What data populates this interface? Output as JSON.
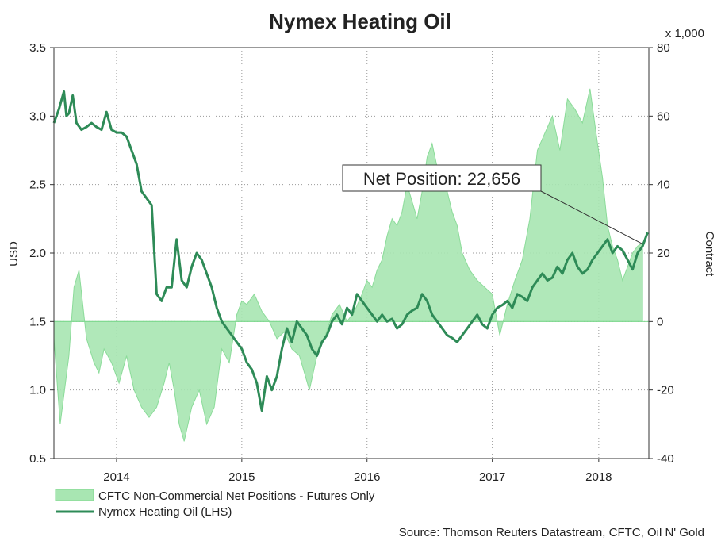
{
  "chart_data": {
    "type": "line",
    "title": "Nymex Heating Oil",
    "left_axis": {
      "label": "USD",
      "min": 0.5,
      "max": 3.5,
      "ticks": [
        "0.5",
        "1.0",
        "1.5",
        "2.0",
        "2.5",
        "3.0",
        "3.5"
      ],
      "tick_values": [
        0.5,
        1.0,
        1.5,
        2.0,
        2.5,
        3.0,
        3.5
      ]
    },
    "right_axis": {
      "label": "Contract",
      "multiplier": "x 1,000",
      "min": -40,
      "max": 80,
      "ticks": [
        "-40",
        "-20",
        "0",
        "20",
        "40",
        "60",
        "80"
      ],
      "tick_values": [
        -40,
        -20,
        0,
        20,
        40,
        60,
        80
      ]
    },
    "x_axis": {
      "min": 2013.6,
      "max": 2018.35,
      "ticks": [
        "2014",
        "2015",
        "2016",
        "2017",
        "2018"
      ],
      "tick_values": [
        2014.1,
        2015.1,
        2016.1,
        2017.1,
        2017.95
      ],
      "gridlines": [
        2014.1,
        2015.1,
        2016.1,
        2017.1,
        2017.95
      ]
    },
    "grid": true,
    "legend_position": "bottom-left",
    "series": [
      {
        "name": "CFTC Non-Commercial Net Positions - Futures Only",
        "type": "area",
        "axis": "right",
        "color": "#7fd88f",
        "x": [
          2013.6,
          2013.65,
          2013.72,
          2013.76,
          2013.8,
          2013.86,
          2013.92,
          2013.96,
          2014.0,
          2014.06,
          2014.12,
          2014.18,
          2014.24,
          2014.3,
          2014.36,
          2014.42,
          2014.48,
          2014.52,
          2014.56,
          2014.6,
          2014.64,
          2014.7,
          2014.76,
          2014.82,
          2014.88,
          2014.94,
          2015.0,
          2015.06,
          2015.1,
          2015.14,
          2015.2,
          2015.26,
          2015.32,
          2015.38,
          2015.44,
          2015.5,
          2015.56,
          2015.6,
          2015.64,
          2015.7,
          2015.76,
          2015.82,
          2015.88,
          2015.94,
          2016.0,
          2016.06,
          2016.1,
          2016.14,
          2016.18,
          2016.22,
          2016.26,
          2016.3,
          2016.34,
          2016.38,
          2016.42,
          2016.46,
          2016.5,
          2016.54,
          2016.58,
          2016.62,
          2016.66,
          2016.7,
          2016.74,
          2016.78,
          2016.82,
          2016.86,
          2016.92,
          2016.98,
          2017.04,
          2017.1,
          2017.16,
          2017.22,
          2017.28,
          2017.34,
          2017.4,
          2017.46,
          2017.52,
          2017.58,
          2017.64,
          2017.7,
          2017.76,
          2017.82,
          2017.88,
          2017.94,
          2017.98,
          2018.02,
          2018.06,
          2018.1,
          2018.14,
          2018.18,
          2018.22,
          2018.26,
          2018.3
        ],
        "values": [
          -5,
          -30,
          -10,
          10,
          15,
          -5,
          -12,
          -15,
          -8,
          -12,
          -18,
          -10,
          -20,
          -25,
          -28,
          -25,
          -18,
          -12,
          -20,
          -30,
          -35,
          -25,
          -20,
          -30,
          -25,
          -8,
          -12,
          2,
          6,
          5,
          8,
          3,
          0,
          -5,
          -3,
          -8,
          -10,
          -15,
          -20,
          -10,
          -5,
          2,
          5,
          0,
          3,
          8,
          12,
          10,
          15,
          18,
          25,
          30,
          28,
          32,
          40,
          35,
          30,
          38,
          48,
          52,
          45,
          40,
          38,
          32,
          28,
          20,
          15,
          12,
          10,
          8,
          -4,
          5,
          12,
          18,
          30,
          50,
          55,
          60,
          50,
          65,
          62,
          58,
          68,
          52,
          42,
          28,
          22,
          18,
          12,
          16,
          20,
          22,
          23
        ]
      },
      {
        "name": "Nymex Heating Oil (LHS)",
        "type": "line",
        "axis": "left",
        "color": "#2e8b57",
        "x": [
          2013.6,
          2013.64,
          2013.68,
          2013.7,
          2013.72,
          2013.75,
          2013.78,
          2013.82,
          2013.86,
          2013.9,
          2013.94,
          2013.98,
          2014.02,
          2014.06,
          2014.1,
          2014.14,
          2014.18,
          2014.22,
          2014.26,
          2014.3,
          2014.34,
          2014.38,
          2014.42,
          2014.46,
          2014.5,
          2014.54,
          2014.58,
          2014.62,
          2014.66,
          2014.7,
          2014.74,
          2014.78,
          2014.82,
          2014.86,
          2014.9,
          2014.94,
          2014.98,
          2015.02,
          2015.06,
          2015.1,
          2015.14,
          2015.18,
          2015.22,
          2015.26,
          2015.3,
          2015.34,
          2015.38,
          2015.42,
          2015.46,
          2015.5,
          2015.54,
          2015.58,
          2015.62,
          2015.66,
          2015.7,
          2015.74,
          2015.78,
          2015.82,
          2015.86,
          2015.9,
          2015.94,
          2015.98,
          2016.02,
          2016.06,
          2016.1,
          2016.14,
          2016.18,
          2016.22,
          2016.26,
          2016.3,
          2016.34,
          2016.38,
          2016.42,
          2016.46,
          2016.5,
          2016.54,
          2016.58,
          2016.62,
          2016.66,
          2016.7,
          2016.74,
          2016.78,
          2016.82,
          2016.86,
          2016.9,
          2016.94,
          2016.98,
          2017.02,
          2017.06,
          2017.1,
          2017.14,
          2017.18,
          2017.22,
          2017.26,
          2017.3,
          2017.34,
          2017.38,
          2017.42,
          2017.46,
          2017.5,
          2017.54,
          2017.58,
          2017.62,
          2017.66,
          2017.7,
          2017.74,
          2017.78,
          2017.82,
          2017.86,
          2017.9,
          2017.94,
          2017.98,
          2018.02,
          2018.06,
          2018.1,
          2018.14,
          2018.18,
          2018.22,
          2018.26,
          2018.3,
          2018.34
        ],
        "values": [
          2.95,
          3.05,
          3.18,
          3.0,
          3.02,
          3.15,
          2.95,
          2.9,
          2.92,
          2.95,
          2.92,
          2.9,
          3.03,
          2.9,
          2.88,
          2.88,
          2.85,
          2.75,
          2.65,
          2.45,
          2.4,
          2.35,
          1.7,
          1.65,
          1.75,
          1.75,
          2.1,
          1.8,
          1.75,
          1.9,
          2.0,
          1.95,
          1.85,
          1.75,
          1.6,
          1.5,
          1.45,
          1.4,
          1.35,
          1.3,
          1.2,
          1.15,
          1.05,
          0.85,
          1.1,
          1.0,
          1.1,
          1.3,
          1.45,
          1.35,
          1.5,
          1.45,
          1.4,
          1.3,
          1.25,
          1.35,
          1.4,
          1.5,
          1.55,
          1.48,
          1.6,
          1.55,
          1.7,
          1.65,
          1.6,
          1.55,
          1.5,
          1.55,
          1.5,
          1.52,
          1.45,
          1.48,
          1.55,
          1.58,
          1.6,
          1.7,
          1.65,
          1.55,
          1.5,
          1.45,
          1.4,
          1.38,
          1.35,
          1.4,
          1.45,
          1.5,
          1.55,
          1.48,
          1.45,
          1.55,
          1.6,
          1.62,
          1.65,
          1.6,
          1.7,
          1.68,
          1.65,
          1.75,
          1.8,
          1.85,
          1.8,
          1.82,
          1.9,
          1.85,
          1.95,
          2.0,
          1.9,
          1.85,
          1.88,
          1.95,
          2.0,
          2.05,
          2.1,
          2.0,
          2.05,
          2.02,
          1.95,
          1.88,
          2.0,
          2.05,
          2.15
        ]
      }
    ],
    "annotations": [
      {
        "text": "Net Position: 22,656",
        "x": 2018.3,
        "y_right": 22.656
      }
    ],
    "source": "Source: Thomson Reuters Datastream, CFTC, Oil N' Gold"
  }
}
